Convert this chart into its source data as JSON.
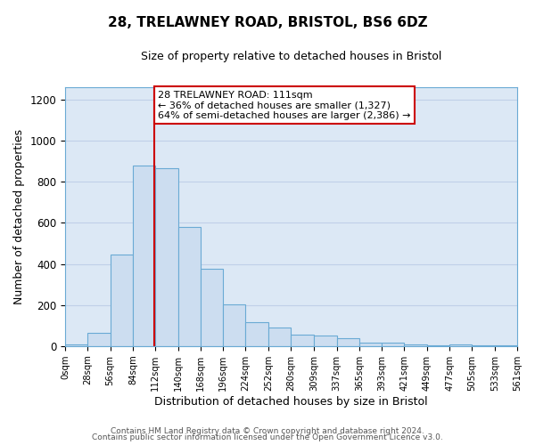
{
  "title_line1": "28, TRELAWNEY ROAD, BRISTOL, BS6 6DZ",
  "title_line2": "Size of property relative to detached houses in Bristol",
  "xlabel": "Distribution of detached houses by size in Bristol",
  "ylabel": "Number of detached properties",
  "bar_edges": [
    0,
    28,
    56,
    84,
    112,
    140,
    168,
    196,
    224,
    252,
    280,
    309,
    337,
    365,
    393,
    421,
    449,
    477,
    505,
    533,
    561
  ],
  "bar_heights": [
    10,
    65,
    445,
    880,
    865,
    580,
    375,
    205,
    115,
    90,
    55,
    50,
    40,
    18,
    15,
    8,
    5,
    8,
    5,
    3
  ],
  "bar_facecolor": "#ccddf0",
  "bar_edgecolor": "#6aaad4",
  "property_size": 111,
  "vline_color": "#cc0000",
  "annotation_title": "28 TRELAWNEY ROAD: 111sqm",
  "annotation_line2": "← 36% of detached houses are smaller (1,327)",
  "annotation_line3": "64% of semi-detached houses are larger (2,386) →",
  "annotation_box_edgecolor": "#cc0000",
  "annotation_box_facecolor": "#ffffff",
  "ylim": [
    0,
    1260
  ],
  "xlim": [
    0,
    561
  ],
  "yticks": [
    0,
    200,
    400,
    600,
    800,
    1000,
    1200
  ],
  "xtick_labels": [
    "0sqm",
    "28sqm",
    "56sqm",
    "84sqm",
    "112sqm",
    "140sqm",
    "168sqm",
    "196sqm",
    "224sqm",
    "252sqm",
    "280sqm",
    "309sqm",
    "337sqm",
    "365sqm",
    "393sqm",
    "421sqm",
    "449sqm",
    "477sqm",
    "505sqm",
    "533sqm",
    "561sqm"
  ],
  "xtick_positions": [
    0,
    28,
    56,
    84,
    112,
    140,
    168,
    196,
    224,
    252,
    280,
    309,
    337,
    365,
    393,
    421,
    449,
    477,
    505,
    533,
    561
  ],
  "footer_line1": "Contains HM Land Registry data © Crown copyright and database right 2024.",
  "footer_line2": "Contains public sector information licensed under the Open Government Licence v3.0.",
  "grid_color": "#c0d0e8",
  "plot_bg_color": "#dce8f5",
  "fig_bg_color": "#ffffff"
}
